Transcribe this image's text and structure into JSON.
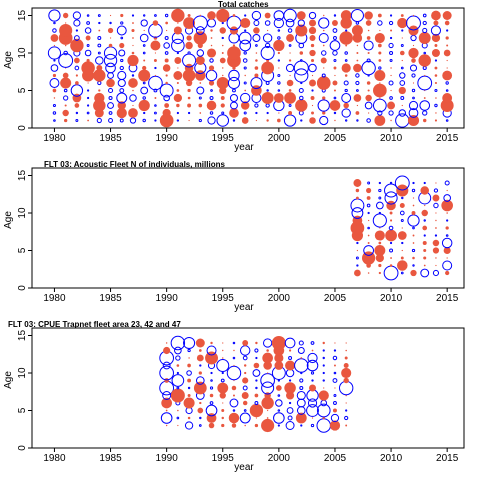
{
  "colors": {
    "positive": "#e9573f",
    "negative": "#0000ff",
    "frame": "#000000"
  },
  "chart_data": [
    {
      "type": "scatter",
      "subtype": "bubble-residual",
      "title": "Total catches",
      "xlabel": "year",
      "ylabel": "Age",
      "xlim": [
        1978,
        2016.5
      ],
      "ylim": [
        0,
        16
      ],
      "xticks": [
        1980,
        1985,
        1990,
        1995,
        2000,
        2005,
        2010,
        2015
      ],
      "yticks": [
        0,
        5,
        10,
        15
      ],
      "x_range": [
        1980,
        2015
      ],
      "ages": [
        1,
        15
      ],
      "grid": false,
      "legend": "none"
    },
    {
      "type": "scatter",
      "subtype": "bubble-residual",
      "title": "FLT 03: Acoustic Fleet   N of individuals, millions",
      "xlabel": "year",
      "ylabel": "Age",
      "xlim": [
        1978,
        2016.5
      ],
      "ylim": [
        0,
        16
      ],
      "xticks": [
        1980,
        1985,
        1990,
        1995,
        2000,
        2005,
        2010,
        2015
      ],
      "yticks": [
        0,
        5,
        10,
        15
      ],
      "x_range": [
        2007,
        2015
      ],
      "ages": [
        2,
        14
      ],
      "grid": false,
      "legend": "none"
    },
    {
      "type": "scatter",
      "subtype": "bubble-residual",
      "title": "FLT 03: CPUE Trapnet fleet area 23, 42 and 47",
      "xlabel": "year",
      "ylabel": "Age",
      "xlim": [
        1978,
        2016.5
      ],
      "ylim": [
        0,
        16
      ],
      "xticks": [
        1980,
        1985,
        1990,
        1995,
        2000,
        2005,
        2010,
        2015
      ],
      "yticks": [
        0,
        5,
        10,
        15
      ],
      "x_range": [
        1990,
        2006
      ],
      "ages": [
        3,
        14
      ],
      "grid": false,
      "legend": "none"
    }
  ]
}
